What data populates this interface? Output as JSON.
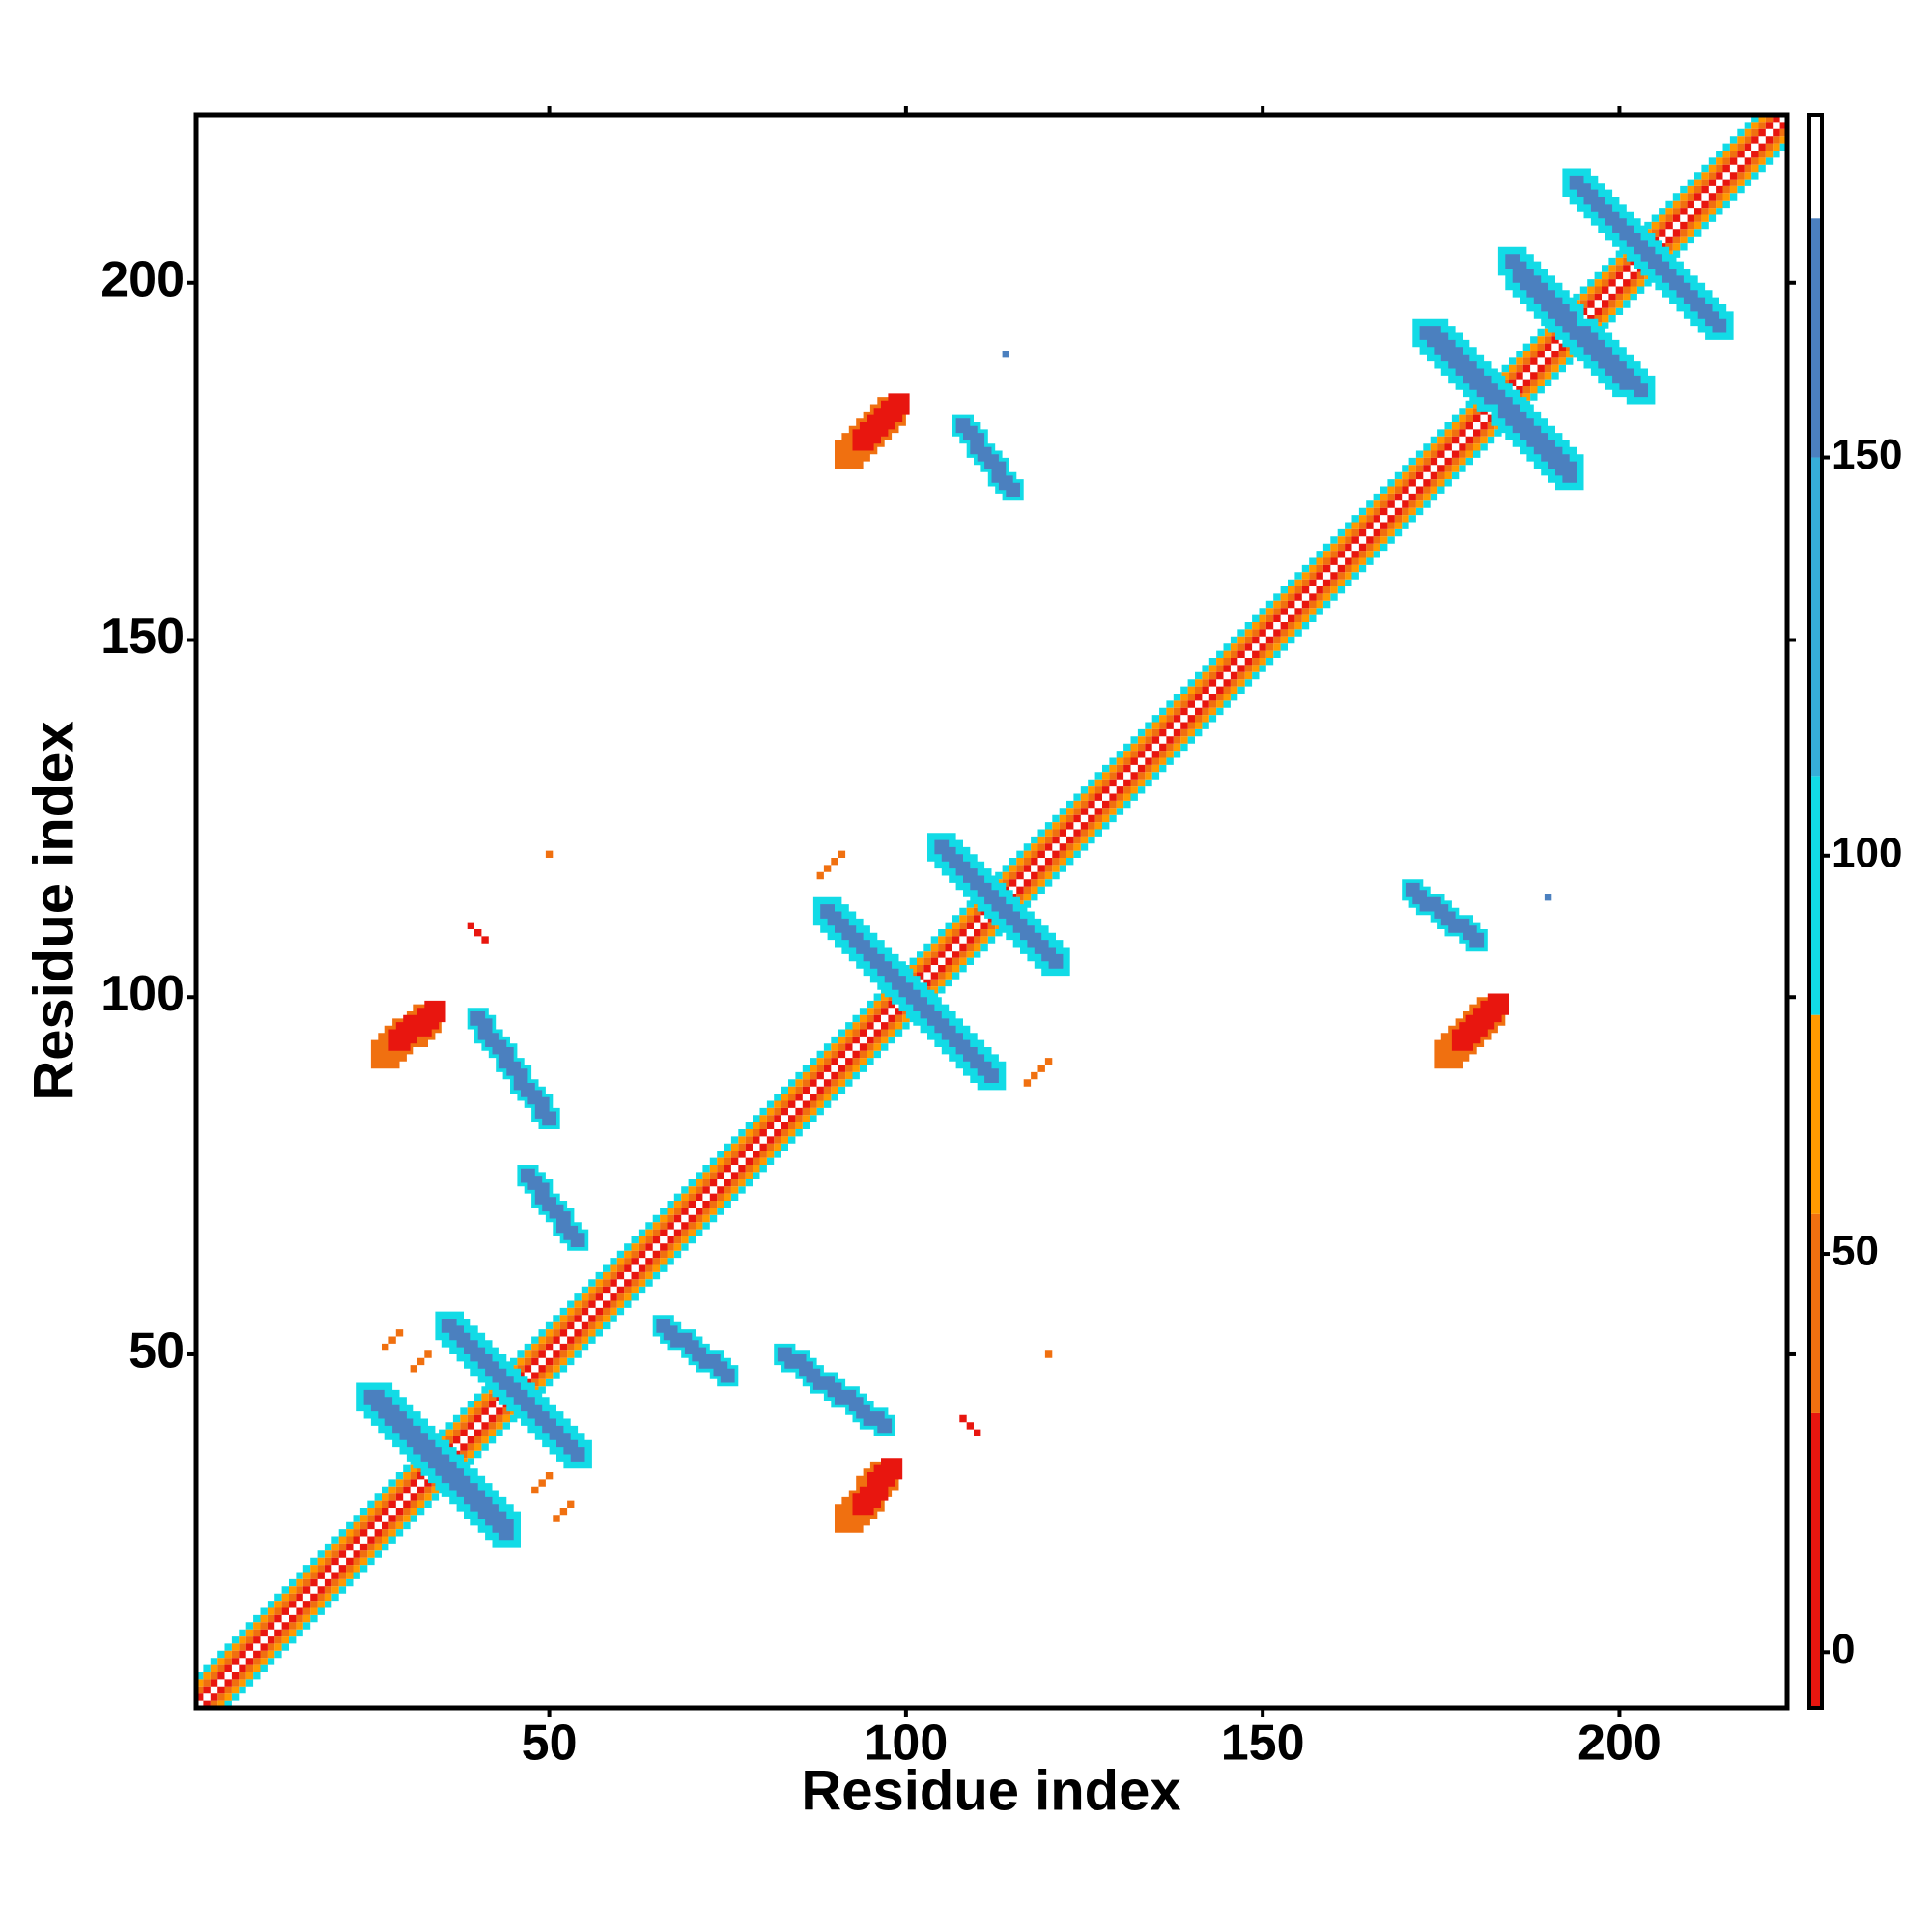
{
  "chart_data": {
    "type": "heatmap",
    "xlabel": "Residue index",
    "ylabel": "Residue index",
    "xlim": [
      0.5,
      223.5
    ],
    "ylim": [
      0.5,
      223.5
    ],
    "xticks": [
      50,
      100,
      150,
      200
    ],
    "yticks": [
      50,
      100,
      150,
      200
    ],
    "symmetric": true,
    "colorbar": {
      "lim": [
        -7,
        193
      ],
      "ticks": [
        0,
        50,
        100,
        150
      ],
      "bands": [
        {
          "from": -7,
          "to": 30,
          "color": "#e8160f"
        },
        {
          "from": 30,
          "to": 55,
          "color": "#f07010"
        },
        {
          "from": 55,
          "to": 80,
          "color": "#ff9a00"
        },
        {
          "from": 80,
          "to": 110,
          "color": "#12dbe6"
        },
        {
          "from": 110,
          "to": 150,
          "color": "#36aed8"
        },
        {
          "from": 150,
          "to": 180,
          "color": "#4b80bf"
        },
        {
          "from": 180,
          "to": 193,
          "color": "#ffffff"
        }
      ]
    },
    "contacts": [
      {
        "x": [
          1,
          219
        ],
        "y": [
          5,
          223
        ],
        "value": 95,
        "width": 1
      },
      {
        "x": [
          1,
          220
        ],
        "y": [
          4,
          223
        ],
        "value": 65,
        "width": 1
      },
      {
        "x": [
          1,
          221
        ],
        "y": [
          3,
          223
        ],
        "value": 45,
        "width": 1
      },
      {
        "x": [
          1,
          222
        ],
        "y": [
          2,
          223
        ],
        "value": 10,
        "width": 1
      },
      {
        "x": [
          36,
          53
        ],
        "y": [
          54,
          37
        ],
        "value": 100,
        "width": 4
      },
      {
        "x": [
          36,
          53
        ],
        "y": [
          54,
          37
        ],
        "value": 160,
        "width": 2
      },
      {
        "x": [
          25,
          44
        ],
        "y": [
          44,
          26
        ],
        "value": 100,
        "width": 4
      },
      {
        "x": [
          25,
          44
        ],
        "y": [
          44,
          26
        ],
        "value": 160,
        "width": 2
      },
      {
        "x": [
          66,
          75
        ],
        "y": [
          54,
          47
        ],
        "value": 100,
        "width": 3
      },
      {
        "x": [
          66,
          75
        ],
        "y": [
          54,
          47
        ],
        "value": 160,
        "width": 2
      },
      {
        "x": [
          83,
          97
        ],
        "y": [
          50,
          40
        ],
        "value": 100,
        "width": 3
      },
      {
        "x": [
          83,
          97
        ],
        "y": [
          50,
          40
        ],
        "value": 160,
        "width": 2
      },
      {
        "x": [
          89,
          110
        ],
        "y": [
          112,
          91
        ],
        "value": 100,
        "width": 4
      },
      {
        "x": [
          89,
          110
        ],
        "y": [
          112,
          91
        ],
        "value": 160,
        "width": 2
      },
      {
        "x": [
          105,
          121
        ],
        "y": [
          121,
          105
        ],
        "value": 100,
        "width": 4
      },
      {
        "x": [
          105,
          121
        ],
        "y": [
          121,
          105
        ],
        "value": 160,
        "width": 2
      },
      {
        "x": [
          108,
          115
        ],
        "y": [
          180,
          171
        ],
        "value": 100,
        "width": 3
      },
      {
        "x": [
          108,
          115
        ],
        "y": [
          180,
          171
        ],
        "value": 160,
        "width": 2
      },
      {
        "x": [
          185,
          201
        ],
        "y": [
          203,
          186
        ],
        "value": 100,
        "width": 4
      },
      {
        "x": [
          185,
          201
        ],
        "y": [
          203,
          186
        ],
        "value": 160,
        "width": 2
      },
      {
        "x": [
          173,
          193
        ],
        "y": [
          193,
          174
        ],
        "value": 100,
        "width": 4
      },
      {
        "x": [
          173,
          193
        ],
        "y": [
          193,
          174
        ],
        "value": 160,
        "width": 2
      },
      {
        "x": [
          194,
          213
        ],
        "y": [
          214,
          195
        ],
        "value": 100,
        "width": 4
      },
      {
        "x": [
          194,
          213
        ],
        "y": [
          214,
          195
        ],
        "value": 160,
        "width": 2
      },
      {
        "x": [
          92,
          97
        ],
        "y": [
          27,
          33
        ],
        "value": 50,
        "width": 4
      },
      {
        "x": [
          94,
          98
        ],
        "y": [
          29,
          34
        ],
        "value": 5,
        "width": 3
      },
      {
        "x": [
          92,
          98
        ],
        "y": [
          176,
          182
        ],
        "value": 50,
        "width": 4
      },
      {
        "x": [
          94,
          99
        ],
        "y": [
          178,
          183
        ],
        "value": 5,
        "width": 3
      },
      {
        "x": [
          27,
          29
        ],
        "y": [
          51,
          53
        ],
        "value": 50,
        "width": 1
      },
      {
        "x": [
          48,
          50
        ],
        "y": [
          31,
          33
        ],
        "value": 50,
        "width": 1
      },
      {
        "x": [
          117,
          120
        ],
        "y": [
          88,
          91
        ],
        "value": 45,
        "width": 1
      },
      {
        "x": [
          120,
          120
        ],
        "y": [
          50,
          50
        ],
        "value": 45,
        "width": 1
      },
      {
        "x": [
          108,
          110
        ],
        "y": [
          41,
          39
        ],
        "value": 10,
        "width": 1
      },
      {
        "x": [
          190,
          190
        ],
        "y": [
          114,
          114
        ],
        "value": 160,
        "width": 1
      }
    ]
  }
}
